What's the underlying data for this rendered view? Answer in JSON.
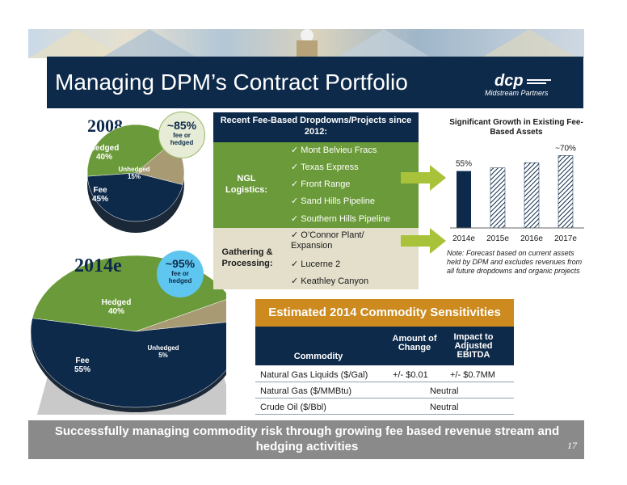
{
  "slide": {
    "title": "Managing DPM’s Contract Portfolio",
    "logo": {
      "text": "dcp",
      "subtext": "Midstream Partners"
    },
    "page_number": "17",
    "footer": "Successfully managing commodity risk through growing fee based revenue stream and hedging activities"
  },
  "left": {
    "pie_2008": {
      "year": "2008",
      "badge_pct": "~85%",
      "badge_sub": "fee or hedged",
      "slices": [
        {
          "name": "Hedged",
          "pct": "40%",
          "value": 40,
          "color": "#6b9a3a"
        },
        {
          "name": "Unhedged",
          "pct": "15%",
          "value": 15,
          "color": "#a89b74"
        },
        {
          "name": "Fee",
          "pct": "45%",
          "value": 45,
          "color": "#0e2a4a"
        }
      ]
    },
    "pie_2014": {
      "year": "2014e",
      "badge_pct": "~95%",
      "badge_sub": "fee or hedged",
      "slices": [
        {
          "name": "Hedged",
          "pct": "40%",
          "value": 40,
          "color": "#6b9a3a"
        },
        {
          "name": "Unhedged",
          "pct": "5%",
          "value": 5,
          "color": "#a89b74"
        },
        {
          "name": "Fee",
          "pct": "55%",
          "value": 55,
          "color": "#0e2a4a"
        }
      ]
    }
  },
  "dropdowns": {
    "header": "Recent Fee-Based Dropdowns/Projects since 2012:",
    "ngl": {
      "label": "NGL Logistics:",
      "items": [
        "Mont Belvieu Fracs",
        "Texas Express",
        "Front Range",
        "Sand Hills Pipeline",
        "Southern Hills Pipeline"
      ]
    },
    "gp": {
      "label": "Gathering & Processing:",
      "items": [
        "O’Connor Plant/ Expansion",
        "Lucerne 2",
        "Keathley Canyon"
      ]
    },
    "check": "✓",
    "colors": {
      "ngl": "#6b9a3a",
      "gp": "#e3dfcb",
      "arrow": "#a8c23a"
    }
  },
  "chart_data": {
    "type": "bar",
    "title": "Significant Growth in Existing Fee-Based Assets",
    "categories": [
      "2014e",
      "2015e",
      "2016e",
      "2017e"
    ],
    "values": [
      55,
      58,
      63,
      70
    ],
    "data_labels": [
      "55%",
      "",
      "",
      "~70%"
    ],
    "note": "Note: Forecast based on current assets held by DPM and excludes revenues from all future dropdowns and organic projects"
  },
  "sensitivities": {
    "title": "Estimated 2014 Commodity Sensitivities",
    "headers": {
      "commodity": "Commodity",
      "amount": "Amount of Change",
      "impact": "Impact to Adjusted EBITDA"
    },
    "rows": [
      {
        "commodity": "Natural Gas Liquids ($/Gal)",
        "amount": "+/- $0.01",
        "impact": "+/- $0.7MM"
      },
      {
        "commodity": "Natural Gas ($/MMBtu)",
        "combined": "Neutral"
      },
      {
        "commodity": "Crude Oil ($/Bbl)",
        "combined": "Neutral"
      }
    ]
  }
}
